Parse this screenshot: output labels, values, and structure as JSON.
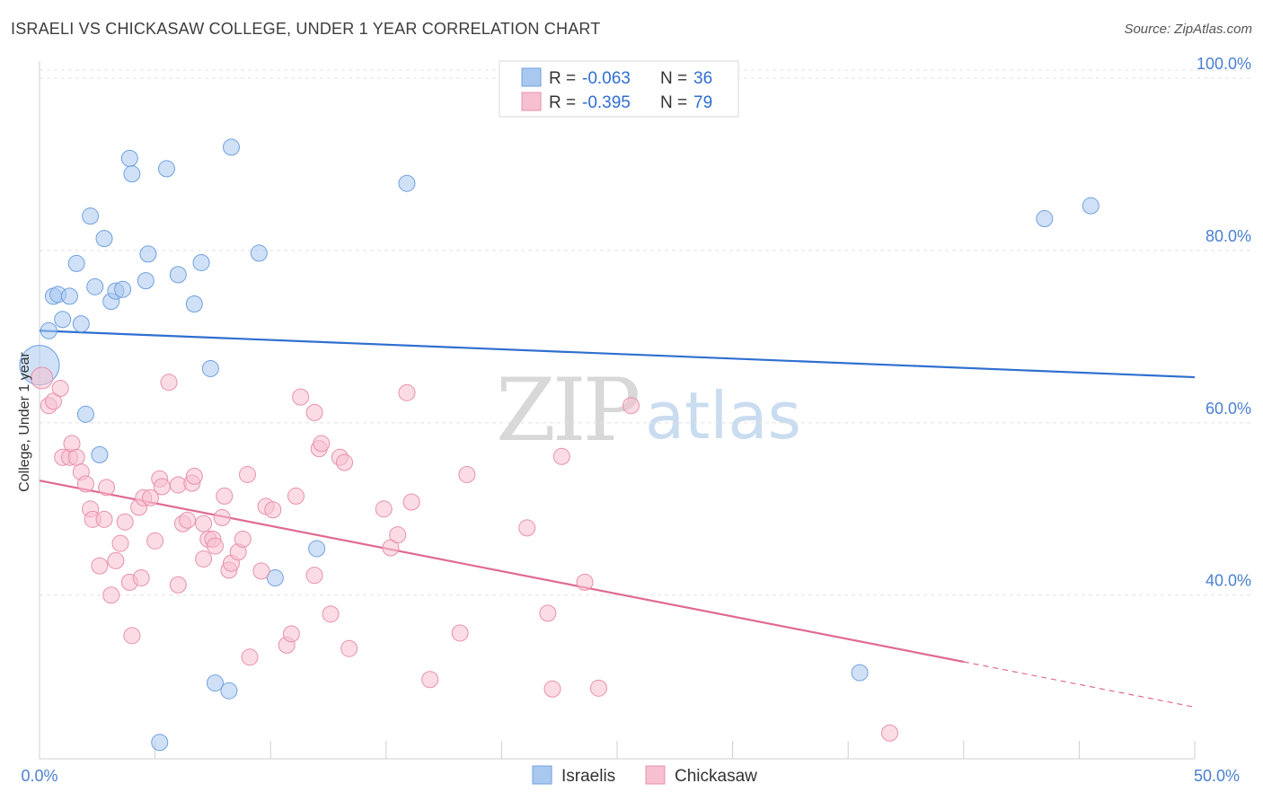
{
  "header": {
    "title": "ISRAELI VS CHICKASAW COLLEGE, UNDER 1 YEAR CORRELATION CHART",
    "source": "Source: ZipAtlas.com"
  },
  "watermark": {
    "zip": "ZIP",
    "atlas": "atlas"
  },
  "legend": {
    "rows": [
      {
        "r_label": "R =",
        "r_value": "-0.063",
        "n_label": "N =",
        "n_value": "36",
        "color": "#a9c8f0",
        "stroke": "#6fa0df"
      },
      {
        "r_label": "R =",
        "r_value": "-0.395",
        "n_label": "N =",
        "n_value": "79",
        "color": "#f7c0d0",
        "stroke": "#e890ab"
      }
    ]
  },
  "bottom_legend": [
    {
      "label": "Israelis",
      "color": "#a9c8f0",
      "stroke": "#6fa0df"
    },
    {
      "label": "Chickasaw",
      "color": "#f7c0d0",
      "stroke": "#e890ab"
    }
  ],
  "chart_data": {
    "type": "scatter",
    "title": "ISRAELI VS CHICKASAW COLLEGE, UNDER 1 YEAR CORRELATION CHART",
    "xlabel": "",
    "ylabel": "College, Under 1 year",
    "xlim": [
      0,
      50
    ],
    "ylim": [
      21,
      102
    ],
    "x_tick_labels": [
      {
        "value": 0,
        "label": "0.0%"
      },
      {
        "value": 50,
        "label": "50.0%"
      }
    ],
    "x_minor_ticks": [
      5,
      10,
      15,
      20,
      25,
      30,
      35,
      40,
      45
    ],
    "y_ticks": [
      {
        "value": 40,
        "label": "40.0%"
      },
      {
        "value": 60,
        "label": "60.0%"
      },
      {
        "value": 80,
        "label": "80.0%"
      },
      {
        "value": 100,
        "label": "100.0%"
      }
    ],
    "series": [
      {
        "name": "Israelis",
        "color": "#a9c8f0",
        "stroke": "#6fa0df",
        "line_color": "#2f6fd0",
        "trend": {
          "x0": 0,
          "y0": 70.7,
          "x1": 50,
          "y1": 65.3,
          "solid_until": 50
        },
        "points": [
          [
            0.0,
            66.7,
            3
          ],
          [
            0.4,
            70.7,
            1
          ],
          [
            0.6,
            74.7,
            1
          ],
          [
            0.8,
            74.9,
            1
          ],
          [
            1.0,
            72.0,
            1
          ],
          [
            1.3,
            74.7,
            1
          ],
          [
            1.6,
            78.5,
            1
          ],
          [
            1.8,
            71.5,
            1
          ],
          [
            2.0,
            61.0,
            1
          ],
          [
            2.2,
            84.0,
            1
          ],
          [
            2.4,
            75.8,
            1
          ],
          [
            2.6,
            56.3,
            1
          ],
          [
            2.8,
            81.4,
            1
          ],
          [
            3.1,
            74.1,
            1
          ],
          [
            3.3,
            75.3,
            1
          ],
          [
            3.6,
            75.5,
            1
          ],
          [
            3.9,
            90.7,
            1
          ],
          [
            4.0,
            88.9,
            1
          ],
          [
            4.6,
            76.5,
            1
          ],
          [
            4.7,
            79.6,
            1
          ],
          [
            5.2,
            22.9,
            1
          ],
          [
            5.5,
            89.5,
            1
          ],
          [
            6.0,
            77.2,
            1
          ],
          [
            6.7,
            73.8,
            1
          ],
          [
            7.0,
            78.6,
            1
          ],
          [
            7.4,
            66.3,
            1
          ],
          [
            7.6,
            29.8,
            1
          ],
          [
            8.2,
            28.9,
            1
          ],
          [
            8.3,
            92.0,
            1
          ],
          [
            9.5,
            79.7,
            1
          ],
          [
            10.2,
            42.0,
            1
          ],
          [
            12.0,
            45.4,
            1
          ],
          [
            15.9,
            87.8,
            1
          ],
          [
            35.5,
            31.0,
            1
          ],
          [
            43.5,
            83.7,
            1
          ],
          [
            45.5,
            85.2,
            1
          ]
        ]
      },
      {
        "name": "Chickasaw",
        "color": "#f7c0d0",
        "stroke": "#e890ab",
        "line_color": "#e06a94",
        "trend": {
          "x0": 0,
          "y0": 53.3,
          "x1": 50,
          "y1": 27.0,
          "solid_until": 40
        },
        "points": [
          [
            0.1,
            65.2,
            2
          ],
          [
            0.4,
            62.0,
            1
          ],
          [
            0.6,
            62.5,
            1
          ],
          [
            0.9,
            64.0,
            1
          ],
          [
            1.0,
            56.0,
            1
          ],
          [
            1.3,
            56.0,
            1
          ],
          [
            1.4,
            57.6,
            1
          ],
          [
            1.6,
            56.0,
            1
          ],
          [
            1.8,
            54.3,
            1
          ],
          [
            2.0,
            52.9,
            1
          ],
          [
            2.2,
            50.0,
            1
          ],
          [
            2.3,
            48.8,
            1
          ],
          [
            2.6,
            43.4,
            1
          ],
          [
            2.8,
            48.8,
            1
          ],
          [
            2.9,
            52.5,
            1
          ],
          [
            3.1,
            40.0,
            1
          ],
          [
            3.3,
            44.0,
            1
          ],
          [
            3.5,
            46.0,
            1
          ],
          [
            3.7,
            48.5,
            1
          ],
          [
            3.9,
            41.5,
            1
          ],
          [
            4.0,
            35.3,
            1
          ],
          [
            4.3,
            50.2,
            1
          ],
          [
            4.4,
            42.0,
            1
          ],
          [
            4.5,
            51.3,
            1
          ],
          [
            4.8,
            51.3,
            1
          ],
          [
            5.0,
            46.3,
            1
          ],
          [
            5.2,
            53.5,
            1
          ],
          [
            5.3,
            52.6,
            1
          ],
          [
            5.6,
            64.7,
            1
          ],
          [
            6.0,
            52.8,
            1
          ],
          [
            6.0,
            41.2,
            1
          ],
          [
            6.2,
            48.3,
            1
          ],
          [
            6.4,
            48.7,
            1
          ],
          [
            6.6,
            53.0,
            1
          ],
          [
            6.7,
            53.8,
            1
          ],
          [
            7.1,
            48.3,
            1
          ],
          [
            7.1,
            44.2,
            1
          ],
          [
            7.3,
            46.5,
            1
          ],
          [
            7.5,
            46.5,
            1
          ],
          [
            7.6,
            45.7,
            1
          ],
          [
            7.9,
            49.0,
            1
          ],
          [
            8.0,
            51.5,
            1
          ],
          [
            8.2,
            42.9,
            1
          ],
          [
            8.3,
            43.7,
            1
          ],
          [
            8.6,
            45.0,
            1
          ],
          [
            8.8,
            46.5,
            1
          ],
          [
            9.0,
            54.0,
            1
          ],
          [
            9.1,
            32.8,
            1
          ],
          [
            9.6,
            42.8,
            1
          ],
          [
            9.8,
            50.3,
            1
          ],
          [
            10.1,
            49.9,
            1
          ],
          [
            10.7,
            34.2,
            1
          ],
          [
            10.9,
            35.5,
            1
          ],
          [
            11.1,
            51.5,
            1
          ],
          [
            11.3,
            63.0,
            1
          ],
          [
            11.9,
            42.3,
            1
          ],
          [
            11.9,
            61.2,
            1
          ],
          [
            12.1,
            57.0,
            1
          ],
          [
            12.2,
            57.6,
            1
          ],
          [
            12.6,
            37.8,
            1
          ],
          [
            13.0,
            56.0,
            1
          ],
          [
            13.2,
            55.4,
            1
          ],
          [
            13.4,
            33.8,
            1
          ],
          [
            14.9,
            50.0,
            1
          ],
          [
            15.2,
            45.5,
            1
          ],
          [
            15.5,
            47.0,
            1
          ],
          [
            15.9,
            63.5,
            1
          ],
          [
            16.1,
            50.8,
            1
          ],
          [
            16.9,
            30.2,
            1
          ],
          [
            18.2,
            35.6,
            1
          ],
          [
            18.5,
            54.0,
            1
          ],
          [
            21.1,
            47.8,
            1
          ],
          [
            22.0,
            37.9,
            1
          ],
          [
            22.2,
            29.1,
            1
          ],
          [
            22.6,
            56.1,
            1
          ],
          [
            23.6,
            41.5,
            1
          ],
          [
            24.2,
            29.2,
            1
          ],
          [
            25.6,
            62.0,
            1
          ],
          [
            36.8,
            24.0,
            1
          ]
        ]
      }
    ]
  }
}
